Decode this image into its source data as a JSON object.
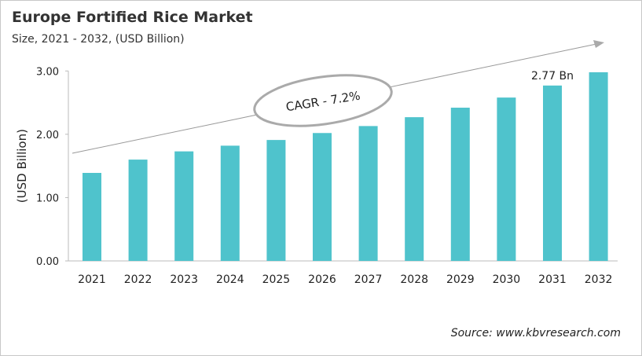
{
  "chart_data": {
    "type": "bar",
    "title": "Europe Fortified Rice Market",
    "subtitle": "Size, 2021 - 2032, (USD Billion)",
    "ylabel": "(USD Billion)",
    "xlabel": "",
    "categories": [
      "2021",
      "2022",
      "2023",
      "2024",
      "2025",
      "2026",
      "2027",
      "2028",
      "2029",
      "2030",
      "2031",
      "2032"
    ],
    "values": [
      1.39,
      1.6,
      1.73,
      1.82,
      1.91,
      2.02,
      2.13,
      2.27,
      2.42,
      2.58,
      2.77,
      2.98
    ],
    "ylim": [
      0,
      3
    ],
    "yticks": [
      "0.00",
      "1.00",
      "2.00",
      "3.00"
    ],
    "data_label": {
      "category": "2031",
      "text": "2.77 Bn"
    },
    "annotation": "CAGR - 7.2%",
    "source": "Source: www.kbvresearch.com",
    "bar_color": "#4fc3cc",
    "grid": false,
    "legend": "none"
  }
}
